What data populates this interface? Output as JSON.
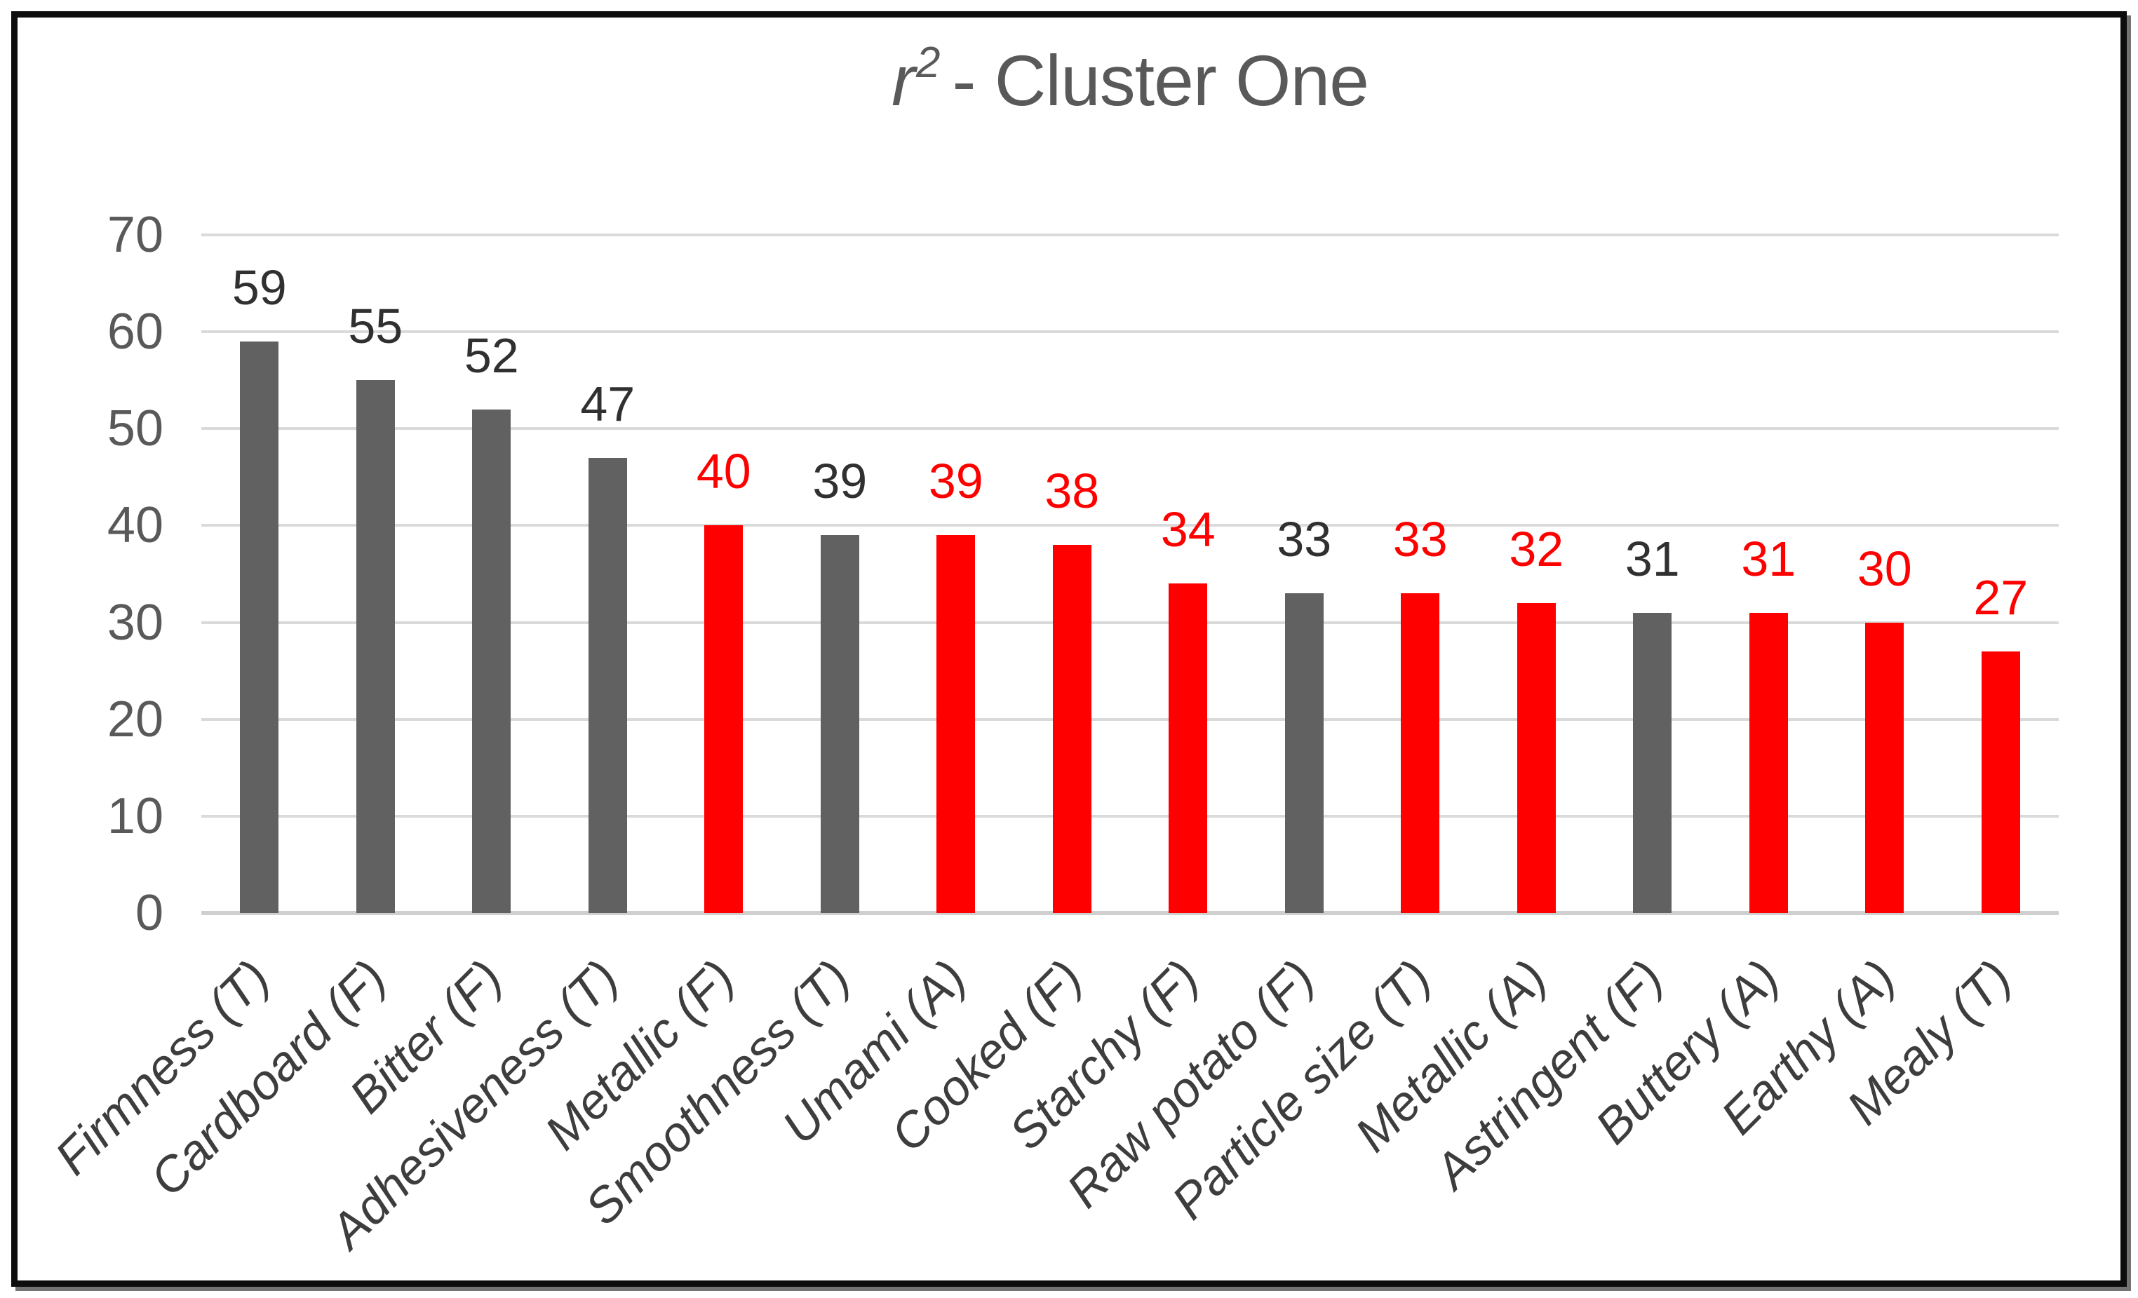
{
  "title": {
    "r": "r",
    "sup": "2",
    "rest": "- Cluster One"
  },
  "chart_data": {
    "type": "bar",
    "title": "r² - Cluster One",
    "categories": [
      "Firmness (T)",
      "Cardboard (F)",
      "Bitter (F)",
      "Adhesiveness (T)",
      "Metallic (F)",
      "Smoothness (T)",
      "Umami (A)",
      "Cooked (F)",
      "Starchy (F)",
      "Raw potato (F)",
      "Particle size (T)",
      "Metallic (A)",
      "Astringent (F)",
      "Buttery (A)",
      "Earthy (A)",
      "Mealy (T)"
    ],
    "values": [
      59,
      55,
      52,
      47,
      40,
      39,
      39,
      38,
      34,
      33,
      33,
      32,
      31,
      31,
      30,
      27
    ],
    "bar_colors": [
      "gray",
      "gray",
      "gray",
      "gray",
      "red",
      "gray",
      "red",
      "red",
      "red",
      "gray",
      "red",
      "red",
      "gray",
      "red",
      "red",
      "red"
    ],
    "xlabel": "",
    "ylabel": "",
    "ylim": [
      0,
      70
    ],
    "yticks": [
      0,
      10,
      20,
      30,
      40,
      50,
      60,
      70
    ],
    "grid": true,
    "legend_position": "none",
    "colors": {
      "gray_bar": "#616161",
      "red_bar": "#FF0000",
      "gray_value_label": "#303030",
      "red_value_label": "#FF0000",
      "axis_tick_text": "#595959",
      "category_text": "#3d3d3d",
      "gridline": "#dadada",
      "axis_line": "#cfcfcf",
      "title_text": "#595959",
      "frame_border": "#0d0d0d"
    }
  }
}
